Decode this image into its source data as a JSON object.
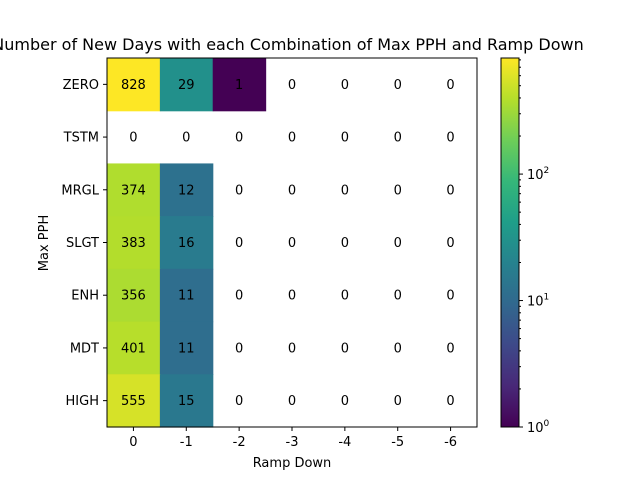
{
  "chart_data": {
    "type": "heatmap",
    "title": "Number of New Days with each Combination of Max PPH and Ramp Down",
    "xlabel": "Ramp Down",
    "ylabel": "Max PPH",
    "x_categories": [
      "0",
      "-1",
      "-2",
      "-3",
      "-4",
      "-5",
      "-6"
    ],
    "y_categories": [
      "ZERO",
      "TSTM",
      "MRGL",
      "SLGT",
      "ENH",
      "MDT",
      "HIGH"
    ],
    "values": [
      [
        828,
        29,
        1,
        0,
        0,
        0,
        0
      ],
      [
        0,
        0,
        0,
        0,
        0,
        0,
        0
      ],
      [
        374,
        12,
        0,
        0,
        0,
        0,
        0
      ],
      [
        383,
        16,
        0,
        0,
        0,
        0,
        0
      ],
      [
        356,
        11,
        0,
        0,
        0,
        0,
        0
      ],
      [
        401,
        11,
        0,
        0,
        0,
        0,
        0
      ],
      [
        555,
        15,
        0,
        0,
        0,
        0,
        0
      ]
    ],
    "zero_cells": "masked (white, log scale)",
    "colormap": "viridis",
    "colorbar": {
      "scale": "log",
      "range": [
        1,
        828
      ],
      "ticks": [
        {
          "value": 1,
          "label": "10",
          "exp": "0"
        },
        {
          "value": 10,
          "label": "10",
          "exp": "1"
        },
        {
          "value": 100,
          "label": "10",
          "exp": "2"
        }
      ]
    },
    "grid": false
  }
}
